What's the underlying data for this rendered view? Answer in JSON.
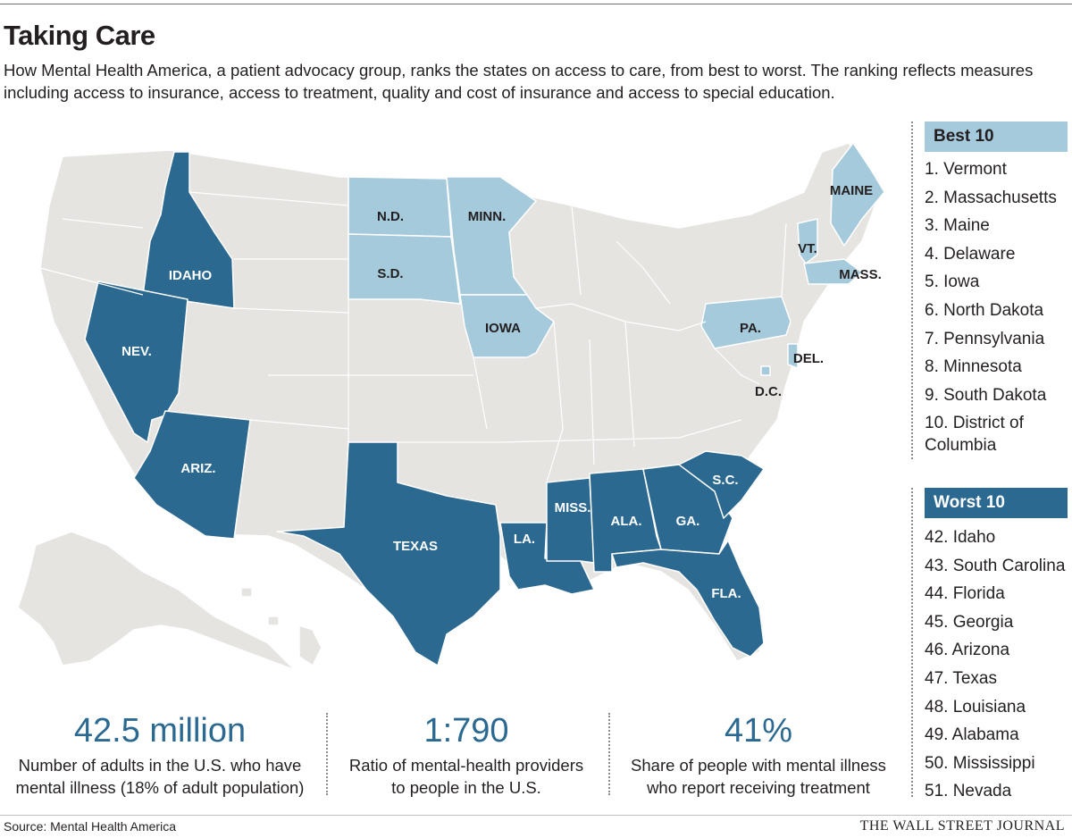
{
  "title": "Taking Care",
  "subtitle": "How Mental Health America, a patient advocacy group, ranks the states on access to care, from best to worst. The ranking reflects measures including access to insurance, access to treatment, quality and cost of insurance and access to special education.",
  "colors": {
    "best": "#a5cadb",
    "worst": "#2c6991",
    "other": "#e6e4e1",
    "border": "#ffffff"
  },
  "map_labels": {
    "idaho": "IDAHO",
    "nev": "NEV.",
    "ariz": "ARIZ.",
    "texas": "TEXAS",
    "nd": "N.D.",
    "sd": "S.D.",
    "minn": "MINN.",
    "iowa": "IOWA",
    "la": "LA.",
    "miss": "MISS.",
    "ala": "ALA.",
    "ga": "GA.",
    "sc": "S.C.",
    "fla": "FLA.",
    "pa": "PA.",
    "del": "DEL.",
    "dc": "D.C.",
    "vt": "VT.",
    "mass": "MASS.",
    "maine": "MAINE"
  },
  "best": {
    "heading": "Best 10",
    "items": [
      "1. Vermont",
      "2. Massachusetts",
      "3. Maine",
      "4. Delaware",
      "5. Iowa",
      "6. North Dakota",
      "7. Pennsylvania",
      "8. Minnesota",
      "9. South Dakota",
      "10. District of Columbia"
    ]
  },
  "worst": {
    "heading": "Worst 10",
    "items": [
      "42. Idaho",
      "43. South Carolina",
      "44. Florida",
      "45. Georgia",
      "46. Arizona",
      "47. Texas",
      "48. Louisiana",
      "49. Alabama",
      "50. Mississippi",
      "51. Nevada"
    ]
  },
  "stats": [
    {
      "value": "42.5 million",
      "desc_line1": "Number of adults in the U.S. who have",
      "desc_line2": "mental illness (18% of adult population)"
    },
    {
      "value": "1:790",
      "desc_line1": "Ratio of mental-health providers",
      "desc_line2": "to people in the U.S."
    },
    {
      "value": "41%",
      "desc_line1": "Share of people with mental illness",
      "desc_line2": "who report receiving treatment"
    }
  ],
  "source": "Source: Mental Health America",
  "publisher": "THE WALL STREET JOURNAL"
}
